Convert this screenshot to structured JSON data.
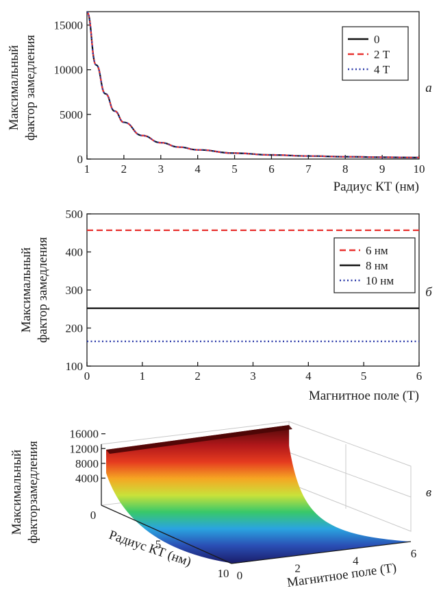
{
  "chart_data": [
    {
      "type": "line",
      "panel_label": "а",
      "xlabel": "Радиус КТ (нм)",
      "ylabel": [
        "Максимальный",
        "фактор замедления"
      ],
      "xlim": [
        1,
        10
      ],
      "ylim": [
        0,
        16500
      ],
      "xticks": [
        1,
        2,
        3,
        4,
        5,
        6,
        7,
        8,
        9,
        10
      ],
      "yticks": [
        0,
        5000,
        10000,
        15000
      ],
      "legend_position": "top-right",
      "x": [
        1,
        1.25,
        1.5,
        1.75,
        2,
        2.5,
        3,
        3.5,
        4,
        5,
        6,
        7,
        8,
        9,
        10
      ],
      "series": [
        {
          "name": "0",
          "style": "solid",
          "color": "#111111",
          "values": [
            16450,
            10530,
            7310,
            5370,
            4110,
            2630,
            1830,
            1340,
            1030,
            660,
            460,
            340,
            260,
            200,
            165
          ]
        },
        {
          "name": "2 Т",
          "style": "dashed",
          "color": "#e8312f",
          "values": [
            16450,
            10530,
            7310,
            5370,
            4110,
            2630,
            1830,
            1340,
            1030,
            660,
            460,
            340,
            260,
            200,
            165
          ]
        },
        {
          "name": "4 Т",
          "style": "dotted",
          "color": "#2b3aa8",
          "values": [
            16450,
            10530,
            7310,
            5370,
            4110,
            2630,
            1830,
            1340,
            1030,
            660,
            460,
            340,
            260,
            200,
            165
          ]
        }
      ]
    },
    {
      "type": "line",
      "panel_label": "б",
      "xlabel": "Магнитное поле (Т)",
      "ylabel": [
        "Максимальный",
        "фактор замедления"
      ],
      "xlim": [
        0,
        6
      ],
      "ylim": [
        100,
        500
      ],
      "xticks": [
        0,
        1,
        2,
        3,
        4,
        5,
        6
      ],
      "yticks": [
        100,
        200,
        300,
        400,
        500
      ],
      "legend_position": "right",
      "x": [
        0,
        6
      ],
      "series": [
        {
          "name": "6 нм",
          "style": "dashed",
          "color": "#e8312f",
          "values": [
            457,
            457
          ]
        },
        {
          "name": "8 нм",
          "style": "solid",
          "color": "#111111",
          "values": [
            252,
            252
          ]
        },
        {
          "name": "10 нм",
          "style": "dotted",
          "color": "#2b3aa8",
          "values": [
            165,
            165
          ]
        }
      ]
    },
    {
      "type": "surface",
      "panel_label": "в",
      "xlabel": "Радиус КТ (нм)",
      "ylabel": "Магнитное поле (Т)",
      "zlabel": [
        "Максимальный",
        "факторзамедления"
      ],
      "x_ticks": [
        0,
        5,
        10
      ],
      "y_ticks": [
        0,
        2,
        4,
        6
      ],
      "z_ticks": [
        4000,
        8000,
        12000,
        16000
      ],
      "zlim": [
        0,
        16500
      ],
      "colormap": [
        "#1b1f6e",
        "#2a4fb5",
        "#2aa4e0",
        "#38c86a",
        "#c9e23a",
        "#f5a623",
        "#e53b1f",
        "#b0171a",
        "#5c0b0b"
      ]
    }
  ]
}
